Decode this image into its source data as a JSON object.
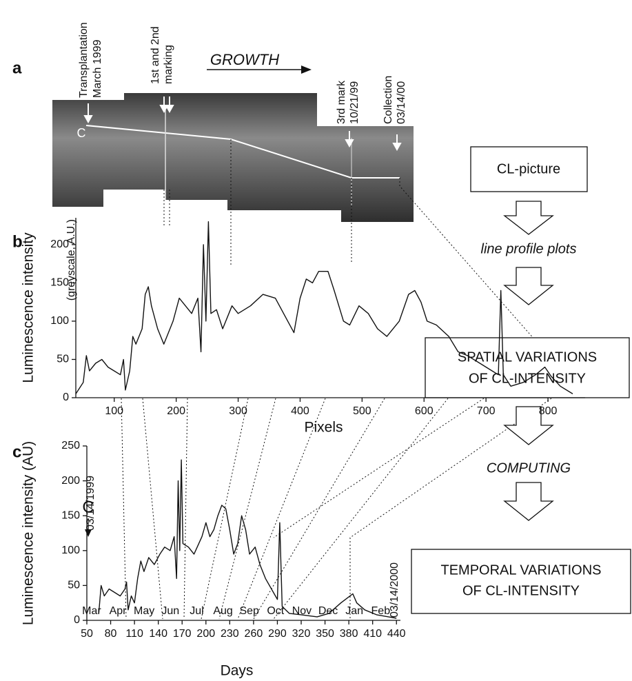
{
  "panel_labels": [
    "a",
    "b",
    "c"
  ],
  "photo": {
    "growth": "GROWTH",
    "marker": "C",
    "annotations": [
      [
        "Transplantation",
        "March 1999"
      ],
      [
        "1st and 2nd",
        "marking"
      ],
      [
        "3rd mark",
        "10/21/99"
      ],
      [
        "Collection",
        "03/14/00"
      ]
    ]
  },
  "chart_data": [
    {
      "type": "line",
      "ylabel": "Luminescence intensity",
      "ylabel_note": "(greyscale, A.U.)",
      "xlabel": "Pixels",
      "color": "#111111",
      "xlim": [
        38,
        860
      ],
      "ylim": [
        0,
        235
      ],
      "xticks": [
        100,
        200,
        300,
        400,
        500,
        600,
        700,
        800
      ],
      "yticks": [
        0,
        50,
        100,
        150,
        200
      ],
      "x": [
        38,
        50,
        55,
        60,
        70,
        80,
        90,
        100,
        110,
        115,
        118,
        125,
        130,
        135,
        145,
        150,
        155,
        160,
        170,
        180,
        185,
        195,
        205,
        215,
        225,
        235,
        240,
        244,
        248,
        252,
        256,
        265,
        275,
        290,
        300,
        320,
        340,
        360,
        380,
        390,
        400,
        410,
        420,
        430,
        445,
        455,
        470,
        480,
        495,
        510,
        525,
        540,
        560,
        575,
        585,
        595,
        605,
        620,
        640,
        655,
        670,
        690,
        710,
        720,
        724,
        728,
        740,
        760,
        780,
        795,
        805,
        820,
        840
      ],
      "values": [
        5,
        20,
        55,
        35,
        45,
        50,
        40,
        35,
        30,
        50,
        10,
        35,
        80,
        70,
        90,
        135,
        145,
        120,
        90,
        70,
        80,
        100,
        130,
        120,
        110,
        130,
        60,
        200,
        100,
        230,
        110,
        115,
        90,
        120,
        110,
        120,
        135,
        130,
        100,
        85,
        130,
        155,
        150,
        165,
        165,
        140,
        100,
        95,
        120,
        110,
        90,
        80,
        100,
        135,
        140,
        125,
        100,
        95,
        80,
        60,
        55,
        45,
        35,
        30,
        140,
        30,
        15,
        20,
        30,
        40,
        28,
        15,
        5
      ]
    },
    {
      "type": "line",
      "ylabel": "Luminescence intensity (AU)",
      "xlabel": "Days",
      "color": "#111111",
      "xlim": [
        50,
        445
      ],
      "ylim": [
        0,
        250
      ],
      "xticks": [
        50,
        80,
        110,
        140,
        170,
        200,
        230,
        260,
        290,
        320,
        350,
        380,
        410,
        440
      ],
      "yticks": [
        0,
        50,
        100,
        150,
        200,
        250
      ],
      "months": [
        "Mar",
        "Apr",
        "May",
        "Jun",
        "Jul",
        "Aug",
        "Sep",
        "Oct",
        "Nov",
        "Dec",
        "Jan",
        "Feb"
      ],
      "start_label": "03/14/1999",
      "end_label": "03/14/2000",
      "marker": "C",
      "x": [
        65,
        68,
        72,
        78,
        85,
        92,
        98,
        100,
        102,
        106,
        110,
        114,
        118,
        122,
        128,
        135,
        142,
        148,
        155,
        160,
        163,
        165,
        167,
        169,
        171,
        178,
        185,
        195,
        200,
        205,
        210,
        215,
        220,
        225,
        230,
        235,
        240,
        245,
        250,
        255,
        262,
        268,
        275,
        285,
        290,
        293,
        296,
        305,
        320,
        340,
        355,
        370,
        385,
        390,
        400,
        415,
        430,
        440
      ],
      "values": [
        10,
        50,
        35,
        45,
        40,
        35,
        45,
        55,
        15,
        35,
        25,
        60,
        85,
        70,
        90,
        80,
        95,
        105,
        100,
        120,
        60,
        200,
        100,
        230,
        110,
        105,
        95,
        120,
        140,
        120,
        130,
        150,
        165,
        160,
        130,
        95,
        110,
        150,
        130,
        95,
        105,
        80,
        60,
        40,
        30,
        140,
        20,
        10,
        8,
        5,
        10,
        25,
        38,
        25,
        15,
        8,
        5,
        3
      ]
    }
  ],
  "flowchart": {
    "box1": "CL-picture",
    "step1": "line profile plots",
    "box2": [
      "SPATIAL VARIATIONS",
      "OF CL-INTENSITY"
    ],
    "step2": "COMPUTING",
    "box3": [
      "TEMPORAL VARIATIONS",
      "OF CL-INTENSITY"
    ]
  }
}
